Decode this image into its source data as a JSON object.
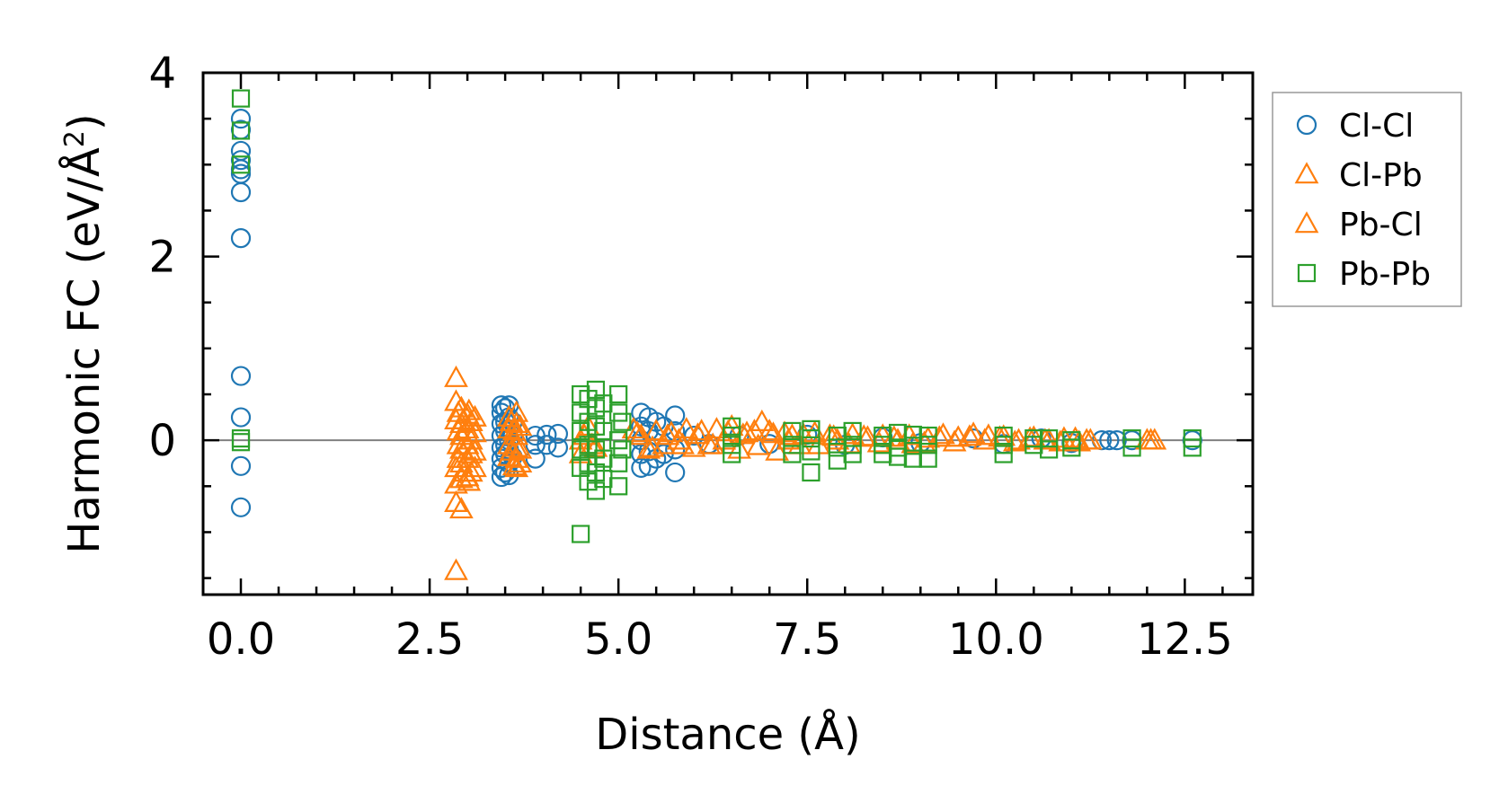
{
  "chart_data": {
    "type": "scatter",
    "xlabel": "Distance (Å)",
    "ylabel_main": "Harmonic FC (eV/Å",
    "ylabel_sup": "2",
    "ylabel_close": ")",
    "xlim": [
      -0.5,
      13.4
    ],
    "ylim": [
      -1.68,
      4.0
    ],
    "x_ticks": [
      0.0,
      2.5,
      5.0,
      7.5,
      10.0,
      12.5
    ],
    "x_tick_labels": [
      "0.0",
      "2.5",
      "5.0",
      "7.5",
      "10.0",
      "12.5"
    ],
    "y_ticks": [
      0,
      2,
      4
    ],
    "y_tick_labels": [
      "0",
      "2",
      "4"
    ],
    "zero_line": true,
    "legend_position": "outside-right",
    "series": [
      {
        "name": "Cl-Cl",
        "marker": "circle",
        "color": "#1f77b4",
        "points": [
          [
            0.0,
            3.5
          ],
          [
            0.0,
            3.38
          ],
          [
            0.0,
            3.15
          ],
          [
            0.0,
            3.05
          ],
          [
            0.0,
            2.95
          ],
          [
            0.0,
            2.9
          ],
          [
            0.0,
            2.7
          ],
          [
            0.0,
            2.2
          ],
          [
            0.0,
            0.7
          ],
          [
            0.0,
            0.25
          ],
          [
            0.0,
            -0.28
          ],
          [
            0.0,
            -0.73
          ],
          [
            3.45,
            0.38
          ],
          [
            3.45,
            0.3
          ],
          [
            3.45,
            0.18
          ],
          [
            3.45,
            0.05
          ],
          [
            3.45,
            -0.08
          ],
          [
            3.45,
            -0.2
          ],
          [
            3.45,
            -0.3
          ],
          [
            3.45,
            -0.4
          ],
          [
            3.5,
            0.35
          ],
          [
            3.5,
            0.2
          ],
          [
            3.5,
            0.1
          ],
          [
            3.5,
            -0.05
          ],
          [
            3.5,
            -0.15
          ],
          [
            3.5,
            -0.35
          ],
          [
            3.55,
            0.38
          ],
          [
            3.55,
            0.25
          ],
          [
            3.55,
            0.12
          ],
          [
            3.55,
            0.0
          ],
          [
            3.55,
            -0.1
          ],
          [
            3.55,
            -0.25
          ],
          [
            3.55,
            -0.38
          ],
          [
            3.6,
            0.2
          ],
          [
            3.6,
            0.05
          ],
          [
            3.6,
            -0.18
          ],
          [
            3.9,
            0.05
          ],
          [
            3.9,
            -0.05
          ],
          [
            3.9,
            -0.2
          ],
          [
            4.05,
            0.06
          ],
          [
            4.05,
            -0.05
          ],
          [
            4.2,
            0.07
          ],
          [
            4.2,
            -0.08
          ],
          [
            5.3,
            0.3
          ],
          [
            5.3,
            0.15
          ],
          [
            5.3,
            0.0
          ],
          [
            5.3,
            -0.15
          ],
          [
            5.3,
            -0.3
          ],
          [
            5.4,
            0.25
          ],
          [
            5.4,
            0.1
          ],
          [
            5.4,
            -0.12
          ],
          [
            5.4,
            -0.28
          ],
          [
            5.5,
            0.2
          ],
          [
            5.5,
            -0.2
          ],
          [
            5.6,
            0.15
          ],
          [
            5.6,
            -0.15
          ],
          [
            5.75,
            0.27
          ],
          [
            5.75,
            0.1
          ],
          [
            5.75,
            -0.1
          ],
          [
            5.75,
            -0.35
          ],
          [
            6.0,
            0.05
          ],
          [
            6.2,
            -0.04
          ],
          [
            6.6,
            0.05
          ],
          [
            7.0,
            -0.04
          ],
          [
            7.5,
            0.06
          ],
          [
            8.0,
            -0.05
          ],
          [
            8.5,
            0.03
          ],
          [
            9.0,
            -0.03
          ],
          [
            9.7,
            0.02
          ],
          [
            10.1,
            -0.04
          ],
          [
            10.6,
            0.02
          ],
          [
            11.0,
            -0.03
          ],
          [
            11.4,
            0.0
          ],
          [
            11.5,
            0.0
          ],
          [
            11.6,
            0.0
          ],
          [
            11.8,
            0.0
          ],
          [
            12.6,
            0.0
          ]
        ]
      },
      {
        "name": "Cl-Pb",
        "marker": "triangle",
        "color": "#ff7f0e",
        "points": [
          [
            2.85,
            0.68
          ],
          [
            2.85,
            0.42
          ],
          [
            2.85,
            0.22
          ],
          [
            2.85,
            -0.3
          ],
          [
            2.85,
            -0.48
          ],
          [
            2.85,
            -0.68
          ],
          [
            2.85,
            -1.42
          ],
          [
            2.92,
            0.35
          ],
          [
            2.92,
            0.18
          ],
          [
            2.92,
            0.05
          ],
          [
            2.92,
            -0.1
          ],
          [
            2.92,
            -0.25
          ],
          [
            2.92,
            -0.42
          ],
          [
            2.92,
            -0.75
          ],
          [
            3.0,
            0.28
          ],
          [
            3.0,
            0.12
          ],
          [
            3.0,
            -0.05
          ],
          [
            3.0,
            -0.2
          ],
          [
            3.0,
            -0.4
          ],
          [
            3.05,
            0.2
          ],
          [
            3.05,
            0.0
          ],
          [
            3.05,
            -0.15
          ],
          [
            3.05,
            -0.35
          ],
          [
            3.1,
            0.25
          ],
          [
            3.1,
            0.08
          ],
          [
            3.1,
            -0.12
          ],
          [
            3.1,
            -0.3
          ],
          [
            3.55,
            0.25
          ],
          [
            3.55,
            0.12
          ],
          [
            3.55,
            -0.05
          ],
          [
            3.55,
            -0.18
          ],
          [
            3.65,
            0.3
          ],
          [
            3.65,
            0.18
          ],
          [
            3.65,
            0.05
          ],
          [
            3.65,
            -0.08
          ],
          [
            3.65,
            -0.2
          ],
          [
            3.65,
            -0.3
          ],
          [
            3.7,
            0.15
          ],
          [
            3.7,
            -0.1
          ],
          [
            3.7,
            -0.25
          ],
          [
            4.5,
            0.0
          ],
          [
            4.5,
            -0.15
          ],
          [
            4.6,
            0.15
          ],
          [
            4.7,
            -0.08
          ],
          [
            5.2,
            0.12
          ],
          [
            5.3,
            0.05
          ],
          [
            5.4,
            -0.1
          ],
          [
            5.5,
            0.1
          ],
          [
            5.6,
            -0.05
          ],
          [
            5.7,
            0.08
          ],
          [
            5.8,
            0.0
          ],
          [
            5.9,
            0.12
          ],
          [
            6.0,
            -0.08
          ],
          [
            6.1,
            0.1
          ],
          [
            6.2,
            -0.05
          ],
          [
            6.3,
            0.12
          ],
          [
            6.4,
            0.0
          ],
          [
            6.5,
            0.15
          ],
          [
            6.6,
            -0.1
          ],
          [
            6.7,
            0.08
          ],
          [
            6.8,
            0.1
          ],
          [
            6.9,
            0.2
          ],
          [
            7.0,
            0.1
          ],
          [
            7.1,
            -0.12
          ],
          [
            7.2,
            0.08
          ],
          [
            7.3,
            0.05
          ],
          [
            7.4,
            -0.05
          ],
          [
            7.6,
            0.08
          ],
          [
            7.8,
            0.05
          ],
          [
            7.9,
            0.0
          ],
          [
            8.1,
            0.06
          ],
          [
            8.3,
            0.03
          ],
          [
            8.5,
            0.05
          ],
          [
            8.7,
            0.0
          ],
          [
            8.9,
            -0.04
          ],
          [
            9.1,
            0.02
          ],
          [
            9.3,
            0.06
          ],
          [
            9.5,
            0.03
          ],
          [
            9.7,
            0.07
          ],
          [
            9.9,
            0.05
          ],
          [
            10.1,
            0.04
          ],
          [
            10.3,
            0.0
          ],
          [
            10.5,
            0.03
          ],
          [
            10.7,
            0.0
          ],
          [
            10.9,
            0.02
          ],
          [
            11.1,
            -0.02
          ],
          [
            11.2,
            0.0
          ],
          [
            12.0,
            0.0
          ],
          [
            12.1,
            0.0
          ]
        ]
      },
      {
        "name": "Pb-Cl",
        "marker": "triangle",
        "color": "#ff7f0e",
        "points": [
          [
            2.88,
            0.3
          ],
          [
            2.88,
            0.1
          ],
          [
            2.88,
            -0.05
          ],
          [
            2.88,
            -0.2
          ],
          [
            2.95,
            0.22
          ],
          [
            2.95,
            -0.35
          ],
          [
            3.02,
            0.32
          ],
          [
            3.02,
            -0.45
          ],
          [
            3.58,
            0.2
          ],
          [
            3.58,
            -0.12
          ],
          [
            3.62,
            0.1
          ],
          [
            3.62,
            -0.28
          ],
          [
            4.55,
            0.05
          ],
          [
            4.65,
            -0.05
          ],
          [
            5.25,
            0.08
          ],
          [
            5.45,
            -0.08
          ],
          [
            5.65,
            0.05
          ],
          [
            5.85,
            -0.05
          ],
          [
            6.05,
            0.06
          ],
          [
            6.25,
            -0.05
          ],
          [
            6.45,
            0.09
          ],
          [
            6.65,
            0.06
          ],
          [
            6.85,
            -0.06
          ],
          [
            7.05,
            0.07
          ],
          [
            7.25,
            0.0
          ],
          [
            7.45,
            0.06
          ],
          [
            7.65,
            -0.05
          ],
          [
            7.85,
            0.04
          ],
          [
            8.05,
            -0.04
          ],
          [
            8.25,
            0.04
          ],
          [
            8.45,
            -0.03
          ],
          [
            8.65,
            0.03
          ],
          [
            8.85,
            0.05
          ],
          [
            9.05,
            -0.03
          ],
          [
            9.25,
            0.03
          ],
          [
            9.45,
            -0.02
          ],
          [
            9.65,
            0.04
          ],
          [
            9.85,
            0.0
          ],
          [
            10.05,
            0.03
          ],
          [
            10.25,
            -0.02
          ],
          [
            10.45,
            0.02
          ],
          [
            10.65,
            0.0
          ],
          [
            10.85,
            -0.02
          ],
          [
            11.05,
            0.02
          ],
          [
            11.25,
            0.0
          ],
          [
            12.05,
            0.0
          ]
        ]
      },
      {
        "name": "Pb-Pb",
        "marker": "square",
        "color": "#2ca02c",
        "points": [
          [
            0.0,
            3.72
          ],
          [
            0.0,
            3.37
          ],
          [
            0.0,
            3.0
          ],
          [
            0.0,
            0.02
          ],
          [
            0.0,
            -0.02
          ],
          [
            4.5,
            0.5
          ],
          [
            4.5,
            0.3
          ],
          [
            4.5,
            0.1
          ],
          [
            4.5,
            -0.1
          ],
          [
            4.5,
            -0.3
          ],
          [
            4.5,
            -1.02
          ],
          [
            4.6,
            0.45
          ],
          [
            4.6,
            0.2
          ],
          [
            4.6,
            -0.05
          ],
          [
            4.6,
            -0.25
          ],
          [
            4.6,
            -0.45
          ],
          [
            4.7,
            0.55
          ],
          [
            4.7,
            0.35
          ],
          [
            4.7,
            0.15
          ],
          [
            4.7,
            -0.1
          ],
          [
            4.7,
            -0.35
          ],
          [
            4.7,
            -0.55
          ],
          [
            4.8,
            0.4
          ],
          [
            4.8,
            0.1
          ],
          [
            4.8,
            -0.2
          ],
          [
            4.8,
            -0.42
          ],
          [
            5.0,
            0.5
          ],
          [
            5.0,
            0.3
          ],
          [
            5.0,
            0.0
          ],
          [
            5.0,
            -0.25
          ],
          [
            5.0,
            -0.5
          ],
          [
            5.05,
            0.2
          ],
          [
            5.05,
            -0.1
          ],
          [
            6.5,
            0.15
          ],
          [
            6.5,
            0.05
          ],
          [
            6.5,
            -0.05
          ],
          [
            6.5,
            -0.15
          ],
          [
            7.3,
            0.1
          ],
          [
            7.3,
            -0.05
          ],
          [
            7.3,
            -0.15
          ],
          [
            7.55,
            0.12
          ],
          [
            7.55,
            0.02
          ],
          [
            7.55,
            -0.12
          ],
          [
            7.55,
            -0.35
          ],
          [
            7.9,
            0.05
          ],
          [
            7.9,
            -0.08
          ],
          [
            7.9,
            -0.22
          ],
          [
            8.1,
            0.1
          ],
          [
            8.1,
            -0.05
          ],
          [
            8.1,
            -0.15
          ],
          [
            8.5,
            0.05
          ],
          [
            8.5,
            -0.05
          ],
          [
            8.5,
            -0.15
          ],
          [
            8.7,
            0.08
          ],
          [
            8.7,
            -0.08
          ],
          [
            8.7,
            -0.18
          ],
          [
            8.9,
            0.06
          ],
          [
            8.9,
            -0.06
          ],
          [
            8.9,
            -0.2
          ],
          [
            9.1,
            0.05
          ],
          [
            9.1,
            -0.05
          ],
          [
            9.1,
            -0.2
          ],
          [
            10.1,
            0.05
          ],
          [
            10.1,
            -0.05
          ],
          [
            10.1,
            -0.15
          ],
          [
            10.5,
            0.02
          ],
          [
            10.5,
            -0.05
          ],
          [
            10.7,
            0.02
          ],
          [
            10.7,
            -0.1
          ],
          [
            11.0,
            0.0
          ],
          [
            11.0,
            -0.08
          ],
          [
            11.8,
            0.02
          ],
          [
            11.8,
            -0.08
          ],
          [
            12.6,
            0.02
          ],
          [
            12.6,
            -0.08
          ]
        ]
      }
    ]
  }
}
